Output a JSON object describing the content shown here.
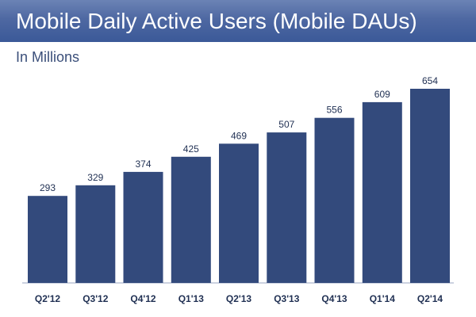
{
  "header": {
    "title": "Mobile Daily Active Users (Mobile DAUs)",
    "subtitle": "In Millions"
  },
  "colors": {
    "title_bar": "#3b5998",
    "bar": "#334a7c",
    "text": "#1f2f52"
  },
  "chart_data": {
    "type": "bar",
    "title": "Mobile Daily Active Users (Mobile DAUs)",
    "subtitle": "In Millions",
    "xlabel": "",
    "ylabel": "",
    "categories": [
      "Q2'12",
      "Q3'12",
      "Q4'12",
      "Q1'13",
      "Q2'13",
      "Q3'13",
      "Q4'13",
      "Q1'14",
      "Q2'14"
    ],
    "values": [
      293,
      329,
      374,
      425,
      469,
      507,
      556,
      609,
      654
    ],
    "data_labels": [
      "293",
      "329",
      "374",
      "425",
      "469",
      "507",
      "556",
      "609",
      "654"
    ],
    "ylim": [
      0,
      654
    ],
    "grid": false,
    "legend": "none"
  }
}
